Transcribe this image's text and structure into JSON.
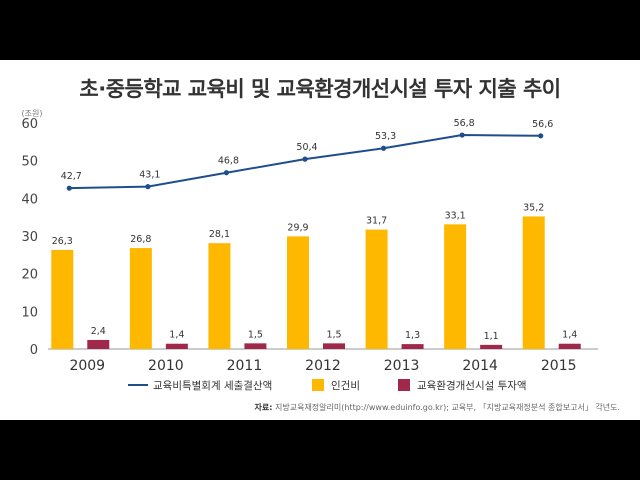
{
  "title": "초·중등학교 교육비 및 교육환경개선시설 투자 지출 추이",
  "unit_label": "(조원)",
  "source_prefix": "자료:",
  "source_text": "지방교육재정알리미(http://www.eduinfo.go.kr); 교육부, 「지방교육재정분석 종합보고서」 각년도.",
  "chart_data": {
    "type": "bar",
    "categories": [
      "2009",
      "2010",
      "2011",
      "2012",
      "2013",
      "2014",
      "2015"
    ],
    "ylim": [
      0,
      60
    ],
    "yticks": [
      0,
      10,
      20,
      30,
      40,
      50,
      60
    ],
    "grid": false,
    "legend_position": "bottom",
    "series": [
      {
        "name": "교육비특별회계 세출결산액",
        "type": "line",
        "color": "#1f4e8c",
        "values": [
          42.7,
          43.1,
          46.8,
          50.4,
          53.3,
          56.8,
          56.6
        ]
      },
      {
        "name": "인건비",
        "type": "bar",
        "color": "#ffb800",
        "values": [
          26.3,
          26.8,
          28.1,
          29.9,
          31.7,
          33.1,
          35.2
        ]
      },
      {
        "name": "교육환경개선시설 투자액",
        "type": "bar",
        "color": "#a0284b",
        "values": [
          2.4,
          1.4,
          1.5,
          1.5,
          1.3,
          1.1,
          1.4
        ]
      }
    ]
  }
}
